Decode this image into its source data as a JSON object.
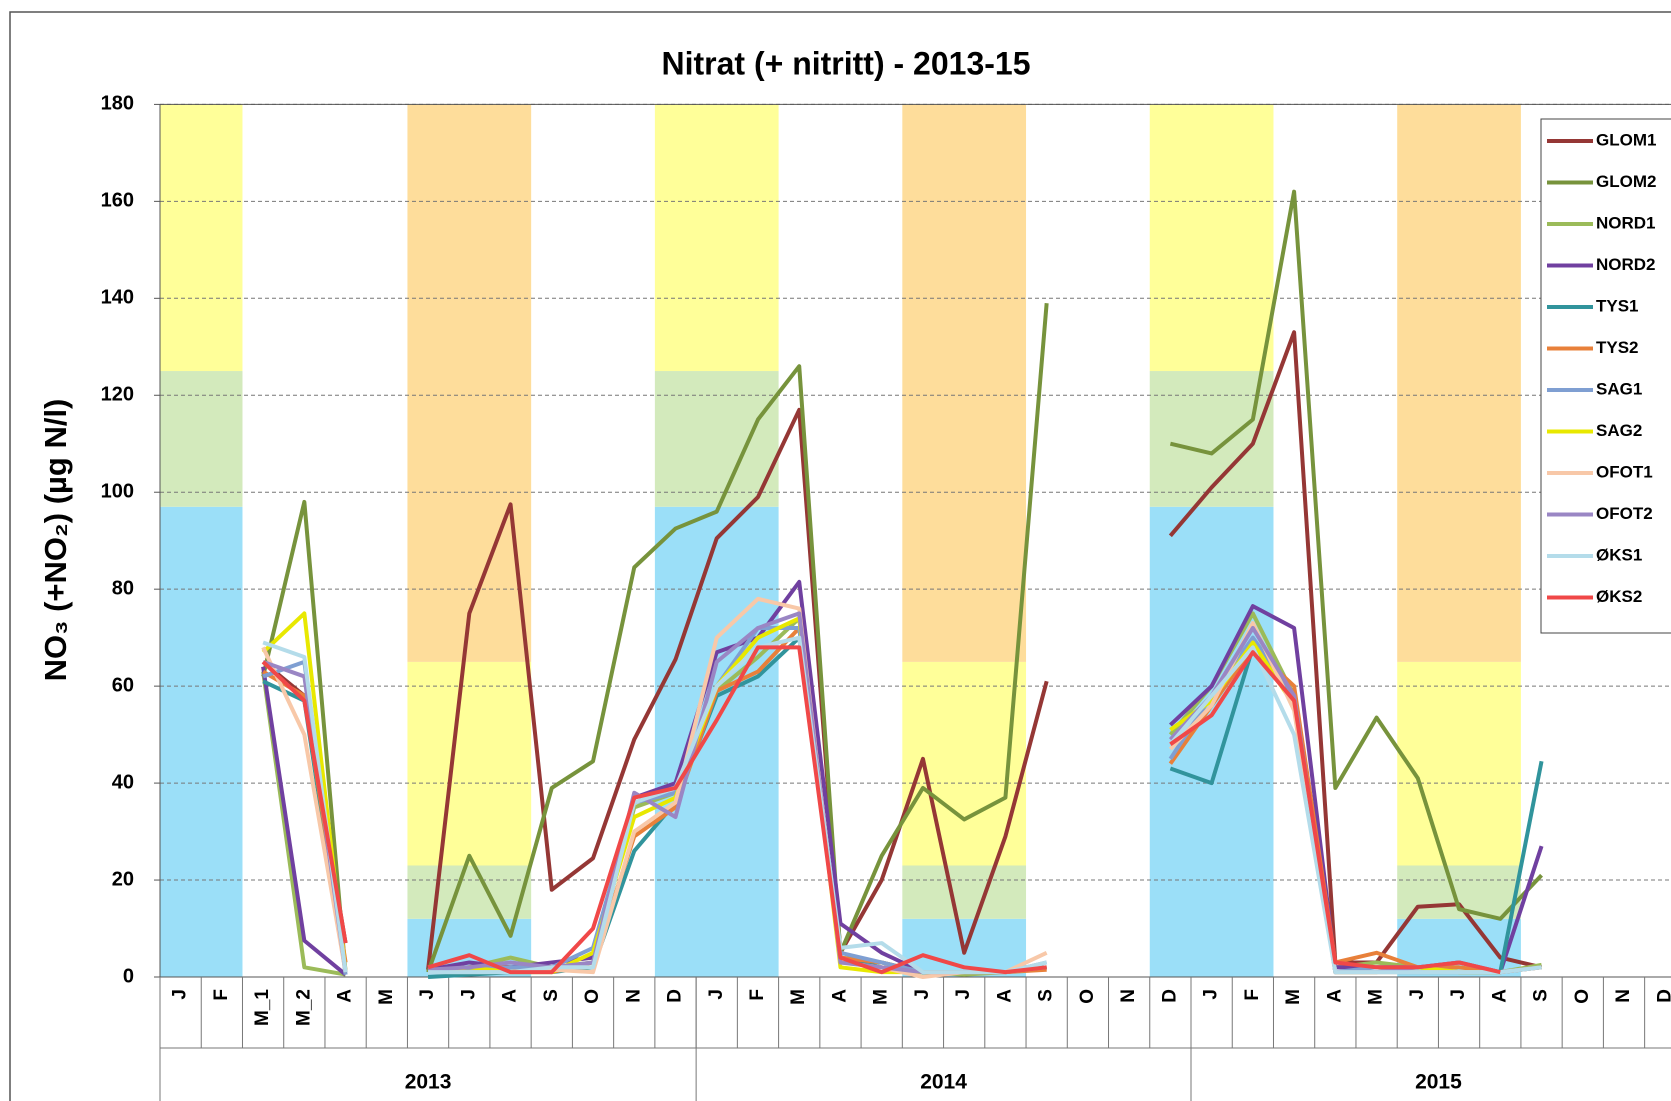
{
  "chart_data": {
    "type": "line",
    "title": "Nitrat (+ nitritt) - 2013-15",
    "y_label": "NO₃ (+NO₂) (µg N/l)",
    "categories": [
      "J",
      "F",
      "M_1",
      "M_2",
      "A",
      "M",
      "J",
      "J",
      "A",
      "S",
      "O",
      "N",
      "D",
      "J",
      "F",
      "M",
      "A",
      "M",
      "J",
      "J",
      "A",
      "S",
      "O",
      "N",
      "D",
      "J",
      "F",
      "M",
      "A",
      "M",
      "J",
      "J",
      "A",
      "S",
      "O",
      "N",
      "D"
    ],
    "groups": [
      {
        "label": "2013",
        "start": 0,
        "end": 12
      },
      {
        "label": "2014",
        "start": 13,
        "end": 24
      },
      {
        "label": "2015",
        "start": 25,
        "end": 36
      }
    ],
    "ylim": [
      0,
      180
    ],
    "yticks": [
      0,
      20,
      40,
      60,
      80,
      100,
      120,
      140,
      160,
      180
    ],
    "grid": true,
    "legend": "upper right",
    "zones": [
      {
        "start": 0,
        "end": 1,
        "bands": [
          {
            "from": 0,
            "to": 97,
            "color": "#9bdff8"
          },
          {
            "from": 97,
            "to": 125,
            "color": "#d3eabc"
          },
          {
            "from": 125,
            "to": 180,
            "color": "#ffff99"
          }
        ]
      },
      {
        "start": 12,
        "end": 14,
        "bands": [
          {
            "from": 0,
            "to": 97,
            "color": "#9bdff8"
          },
          {
            "from": 97,
            "to": 125,
            "color": "#d3eabc"
          },
          {
            "from": 125,
            "to": 180,
            "color": "#ffff99"
          }
        ]
      },
      {
        "start": 24,
        "end": 26,
        "bands": [
          {
            "from": 0,
            "to": 97,
            "color": "#9bdff8"
          },
          {
            "from": 97,
            "to": 125,
            "color": "#d3eabc"
          },
          {
            "from": 125,
            "to": 180,
            "color": "#ffff99"
          }
        ]
      },
      {
        "start": 6,
        "end": 8,
        "bands": [
          {
            "from": 0,
            "to": 12,
            "color": "#9bdff8"
          },
          {
            "from": 12,
            "to": 23,
            "color": "#d3eabc"
          },
          {
            "from": 23,
            "to": 65,
            "color": "#ffff99"
          },
          {
            "from": 65,
            "to": 180,
            "color": "#fedd9b"
          }
        ]
      },
      {
        "start": 18,
        "end": 20,
        "bands": [
          {
            "from": 0,
            "to": 12,
            "color": "#9bdff8"
          },
          {
            "from": 12,
            "to": 23,
            "color": "#d3eabc"
          },
          {
            "from": 23,
            "to": 65,
            "color": "#ffff99"
          },
          {
            "from": 65,
            "to": 180,
            "color": "#fedd9b"
          }
        ]
      },
      {
        "start": 30,
        "end": 32,
        "bands": [
          {
            "from": 0,
            "to": 12,
            "color": "#9bdff8"
          },
          {
            "from": 12,
            "to": 23,
            "color": "#d3eabc"
          },
          {
            "from": 23,
            "to": 65,
            "color": "#ffff99"
          },
          {
            "from": 65,
            "to": 180,
            "color": "#fedd9b"
          }
        ]
      }
    ],
    "series": [
      {
        "name": "GLOM1",
        "color": "#953735",
        "values": [
          null,
          null,
          65,
          58,
          7,
          null,
          1.5,
          75,
          97.5,
          18,
          24.5,
          49,
          65.5,
          90.5,
          99,
          117,
          5,
          20,
          45,
          5,
          29,
          61,
          null,
          null,
          91,
          101,
          110,
          133,
          3,
          3,
          14.5,
          15,
          4,
          2,
          null,
          null,
          null
        ]
      },
      {
        "name": "GLOM2",
        "color": "#77933c",
        "values": [
          null,
          null,
          62,
          98,
          1,
          null,
          1,
          25,
          8.5,
          39,
          44.5,
          84.5,
          92.5,
          96,
          115,
          126,
          5,
          25,
          39,
          32.5,
          37,
          139,
          null,
          null,
          110,
          108,
          115,
          162,
          39,
          53.5,
          41,
          14,
          12,
          21,
          null,
          null,
          null
        ]
      },
      {
        "name": "NORD1",
        "color": "#9bbb59",
        "values": [
          null,
          null,
          63,
          2,
          0.5,
          null,
          1.5,
          2,
          4,
          2,
          3,
          35,
          38,
          59,
          66,
          74,
          4,
          3,
          1,
          0.5,
          1,
          2,
          null,
          null,
          50,
          60,
          75,
          58,
          2,
          3,
          2,
          1,
          1,
          2.5,
          null,
          null,
          null
        ]
      },
      {
        "name": "NORD2",
        "color": "#7040a0",
        "values": [
          null,
          null,
          64,
          7.5,
          0.5,
          null,
          1.5,
          3,
          2,
          3,
          4,
          37,
          40,
          67,
          70,
          81.5,
          11,
          5,
          1,
          1,
          1,
          2,
          null,
          null,
          52,
          60,
          76.5,
          72,
          2,
          2,
          2,
          3,
          1,
          27,
          null,
          null,
          null
        ]
      },
      {
        "name": "TYS1",
        "color": "#31949c",
        "values": [
          null,
          null,
          61,
          57,
          1,
          null,
          0,
          0.5,
          1,
          1,
          2,
          26,
          36,
          58,
          62,
          70,
          4,
          2,
          1,
          1,
          1,
          2,
          null,
          null,
          43,
          40,
          68,
          57,
          1,
          1,
          1,
          1,
          1,
          44.5,
          null,
          null,
          null
        ]
      },
      {
        "name": "TYS2",
        "color": "#e8803a",
        "values": [
          null,
          null,
          63,
          58,
          3,
          null,
          1,
          2,
          2,
          1,
          3,
          29,
          35,
          59,
          63,
          72,
          4,
          3,
          1,
          1,
          1,
          1.5,
          null,
          null,
          44,
          56,
          68,
          60,
          3,
          5,
          2,
          2,
          1,
          2,
          null,
          null,
          null
        ]
      },
      {
        "name": "SAG1",
        "color": "#7f9fd2",
        "values": [
          null,
          null,
          62,
          65,
          0.5,
          null,
          1,
          1.5,
          2,
          2,
          6,
          36,
          38,
          60,
          72,
          72,
          5,
          3,
          1,
          1,
          1,
          3,
          null,
          null,
          45,
          58,
          70,
          58,
          1,
          2,
          2,
          1,
          1,
          2,
          null,
          null,
          null
        ]
      },
      {
        "name": "SAG2",
        "color": "#e8e800",
        "values": [
          null,
          null,
          67,
          75,
          1,
          null,
          1,
          2,
          1,
          1,
          5,
          33,
          37,
          60,
          70,
          74,
          2,
          1,
          1,
          1,
          1,
          2,
          null,
          null,
          51,
          57,
          69,
          56,
          1,
          1,
          2,
          1,
          1,
          2,
          null,
          null,
          null
        ]
      },
      {
        "name": "OFOT1",
        "color": "#f8c8a8",
        "values": [
          null,
          null,
          68,
          50,
          1,
          null,
          1,
          1,
          1,
          1.5,
          1,
          30,
          36,
          70,
          78,
          76,
          3,
          2,
          0,
          1,
          1,
          5,
          null,
          null,
          47,
          56,
          73,
          55,
          1,
          1,
          1,
          1,
          1,
          2,
          null,
          null,
          null
        ]
      },
      {
        "name": "OFOT2",
        "color": "#9a86c4",
        "values": [
          null,
          null,
          65,
          62,
          1,
          null,
          1.5,
          2,
          3,
          2,
          3,
          38,
          33,
          65,
          72,
          75,
          3,
          2,
          1,
          1,
          1,
          2,
          null,
          null,
          49,
          58,
          72,
          58,
          1,
          1,
          2,
          3,
          1,
          2,
          null,
          null,
          null
        ]
      },
      {
        "name": "ØKS1",
        "color": "#b4dcea",
        "values": [
          null,
          null,
          69,
          66,
          1,
          null,
          1,
          1,
          1,
          2,
          2,
          36,
          39,
          60,
          68,
          70,
          6,
          7,
          1,
          1,
          1,
          3,
          null,
          null,
          48,
          58,
          68,
          50,
          1,
          1,
          1,
          1,
          1,
          2,
          null,
          null,
          null
        ]
      },
      {
        "name": "ØKS2",
        "color": "#f04848",
        "values": [
          null,
          null,
          65,
          57,
          7,
          null,
          2,
          4.5,
          1,
          1,
          10,
          37,
          39,
          53,
          68,
          68,
          4,
          1,
          4.5,
          2,
          1,
          2,
          null,
          null,
          48,
          54,
          67,
          57,
          3,
          2,
          2,
          3,
          1,
          null,
          null,
          null,
          null
        ]
      }
    ]
  }
}
